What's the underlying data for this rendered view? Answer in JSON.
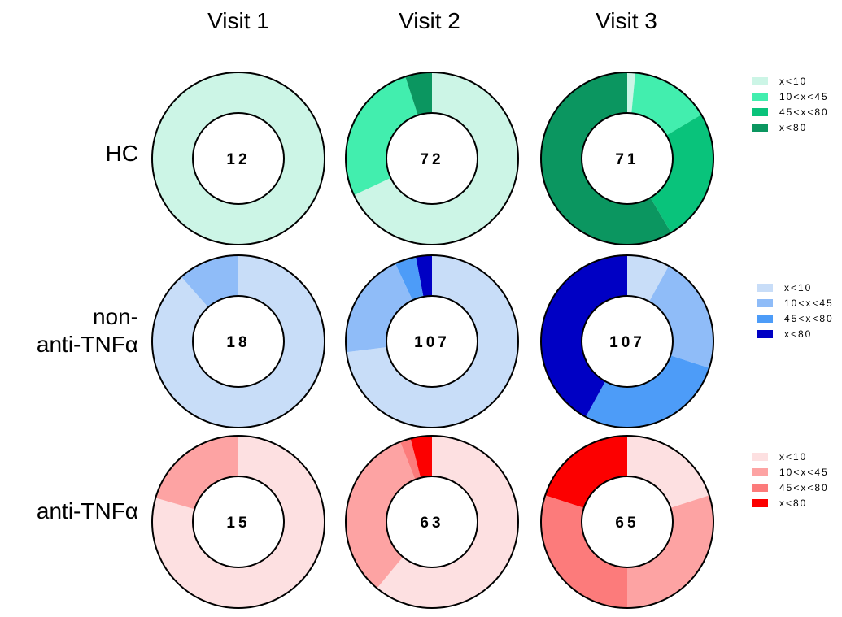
{
  "chart_data": {
    "type": "pie",
    "columns": [
      "Visit 1",
      "Visit 2",
      "Visit 3"
    ],
    "rows": [
      {
        "label_lines": [
          "HC"
        ],
        "colors": [
          "#ccf5e6",
          "#42eeae",
          "#09c37b",
          "#0b9660"
        ],
        "legend": [
          "x<10",
          "10<x<45",
          "45<x<80",
          "x<80"
        ],
        "cells": [
          {
            "n": "12",
            "values": [
              100,
              0,
              0,
              0
            ]
          },
          {
            "n": "72",
            "values": [
              68,
              27,
              0,
              5
            ]
          },
          {
            "n": "71",
            "values": [
              1.5,
              15,
              25,
              58.5
            ]
          }
        ]
      },
      {
        "label_lines": [
          "non-",
          "anti-TNFα"
        ],
        "colors": [
          "#c8ddf8",
          "#8fbcf8",
          "#4d9cf8",
          "#0000c4"
        ],
        "legend": [
          "x<10",
          "10<x<45",
          "45<x<80",
          "x<80"
        ],
        "cells": [
          {
            "n": "18",
            "values": [
              88.5,
              11.5,
              0,
              0
            ]
          },
          {
            "n": "107",
            "values": [
              73,
              20,
              4,
              3
            ]
          },
          {
            "n": "107",
            "values": [
              8,
              22,
              28,
              42
            ]
          }
        ]
      },
      {
        "label_lines": [
          "anti-TNFα"
        ],
        "colors": [
          "#fde0e1",
          "#fda3a3",
          "#fc7b7b",
          "#fc0000"
        ],
        "legend": [
          "x<10",
          "10<x<45",
          "45<x<80",
          "x<80"
        ],
        "cells": [
          {
            "n": "15",
            "values": [
              79.5,
              20.5,
              0,
              0
            ]
          },
          {
            "n": "63",
            "values": [
              61,
              33,
              2,
              4
            ]
          },
          {
            "n": "65",
            "values": [
              20,
              30,
              30,
              20
            ]
          }
        ]
      }
    ]
  }
}
